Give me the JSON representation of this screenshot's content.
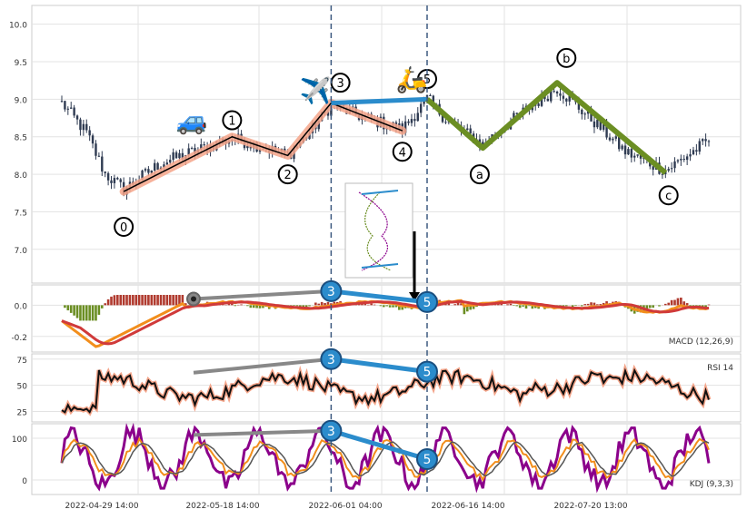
{
  "chart_data": {
    "type": "line",
    "x_ticks": [
      "2022-04-29 14:00",
      "2022-05-18 14:00",
      "2022-06-01 04:00",
      "2022-06-16 14:00",
      "2022-07-20 13:00"
    ],
    "vlines": [
      {
        "label": "3",
        "x_index": 87
      },
      {
        "label": "5",
        "x_index": 118
      }
    ],
    "price": {
      "y_ticks": [
        7.0,
        7.5,
        8.0,
        8.5,
        9.0,
        9.5,
        10.0
      ],
      "ylim": [
        6.55,
        10.25
      ],
      "wave_points": [
        {
          "label": "0",
          "x_index": 20,
          "y": 7.77
        },
        {
          "label": "1",
          "x_index": 55,
          "y": 8.5
        },
        {
          "label": "2",
          "x_index": 73,
          "y": 8.25
        },
        {
          "label": "3",
          "x_index": 87,
          "y": 8.95
        },
        {
          "label": "4",
          "x_index": 110,
          "y": 8.58
        },
        {
          "label": "5",
          "x_index": 118,
          "y": 9.0
        }
      ],
      "abc_points": [
        {
          "label": "a",
          "x_index": 136,
          "y": 8.35
        },
        {
          "label": "b",
          "x_index": 160,
          "y": 9.22
        },
        {
          "label": "c",
          "x_index": 195,
          "y": 8.02
        }
      ],
      "label_positions": [
        {
          "label": "0",
          "x_index": 20,
          "y": 7.3
        },
        {
          "label": "1",
          "x_index": 55,
          "y": 8.72
        },
        {
          "label": "2",
          "x_index": 73,
          "y": 8.0
        },
        {
          "label": "3",
          "x_index": 90,
          "y": 9.22
        },
        {
          "label": "4",
          "x_index": 110,
          "y": 8.3
        },
        {
          "label": "5",
          "x_index": 118,
          "y": 9.27
        },
        {
          "label": "a",
          "x_index": 135,
          "y": 8.0
        },
        {
          "label": "b",
          "x_index": 163,
          "y": 9.55
        },
        {
          "label": "c",
          "x_index": 196,
          "y": 7.72
        }
      ],
      "icons": [
        {
          "name": "car-icon",
          "glyph": "🚙",
          "x_index": 42,
          "y": 8.6
        },
        {
          "name": "airplane-icon",
          "glyph": "✈️",
          "x_index": 82,
          "y": 9.0
        },
        {
          "name": "scooter-icon",
          "glyph": "🛵",
          "x_index": 113,
          "y": 9.15
        }
      ]
    },
    "macd": {
      "label": "MACD (12,26,9)",
      "y_ticks": [
        -0.2,
        0.0
      ],
      "ylim": [
        -0.3,
        0.13
      ]
    },
    "rsi": {
      "label": "RSI 14",
      "y_ticks": [
        25,
        50,
        75
      ],
      "ylim": [
        15,
        80
      ]
    },
    "kdj": {
      "label": "KDJ (9,3,3)",
      "y_ticks": [
        0,
        100
      ],
      "ylim": [
        -35,
        135
      ]
    },
    "colors": {
      "candle": "#2f3b52",
      "impulse_line": "#000000",
      "impulse_glow": "#f4a58a",
      "correction_line": "#6b8e23",
      "wave5_link": "#2b8ccc",
      "vline": "#3d5a80",
      "circle_fill": "#2b8ccc",
      "gray_line": "#888888",
      "macd_hist_pos": "#b03a2e",
      "macd_hist_neg": "#6b8e23",
      "macd_line": "#f28e1c",
      "signal_line": "#d03a3a",
      "rsi_line": "#111111",
      "rsi_glow": "#f4a58a",
      "kdj_k": "#f28e1c",
      "kdj_d": "#555555",
      "kdj_j": "#8b008b"
    }
  }
}
